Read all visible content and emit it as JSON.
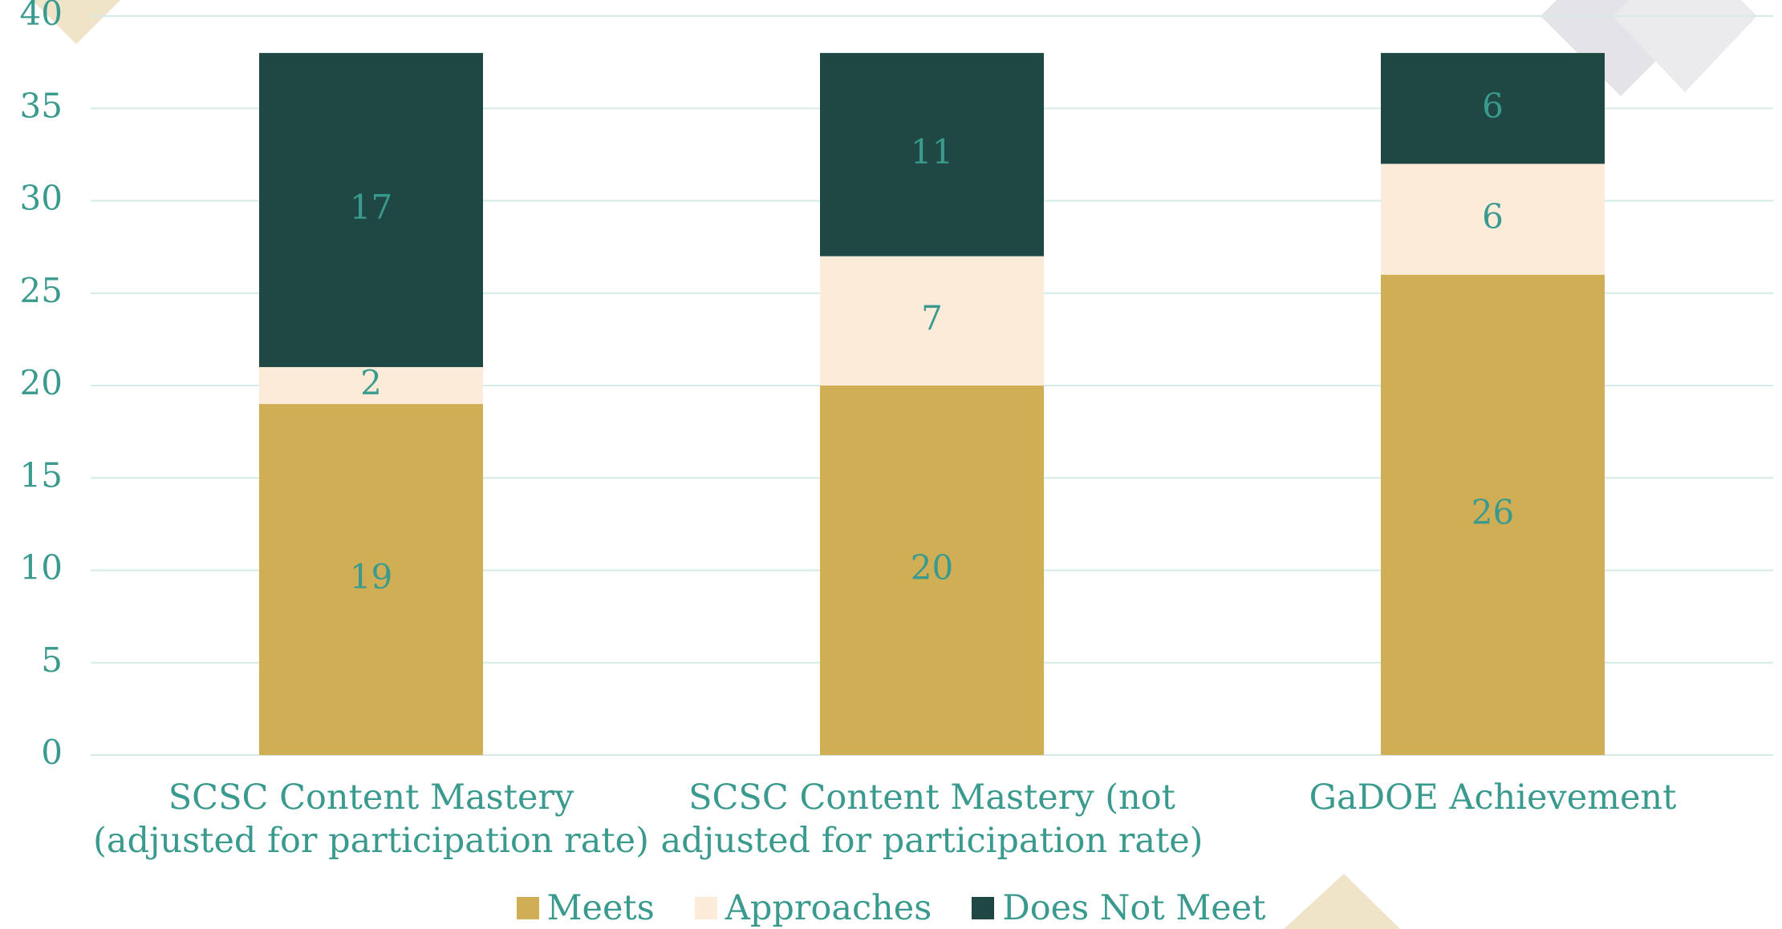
{
  "chart_data": {
    "type": "stacked_bar",
    "categories": [
      "SCSC Content Mastery (adjusted for participation rate)",
      "SCSC Content Mastery (not adjusted for participation rate)",
      "GaDOE Achievement"
    ],
    "series": [
      {
        "name": "Meets",
        "color": "#cfae55",
        "values": [
          19,
          20,
          26
        ]
      },
      {
        "name": "Approaches",
        "color": "#fdebda",
        "values": [
          2,
          7,
          6
        ]
      },
      {
        "name": "Does Not Meet",
        "color": "#1f4845",
        "values": [
          17,
          11,
          6
        ]
      }
    ],
    "ylim": [
      0,
      40
    ],
    "yticks": [
      0,
      5,
      10,
      15,
      20,
      25,
      30,
      35,
      40
    ],
    "grid": true,
    "legend": "bottom"
  }
}
